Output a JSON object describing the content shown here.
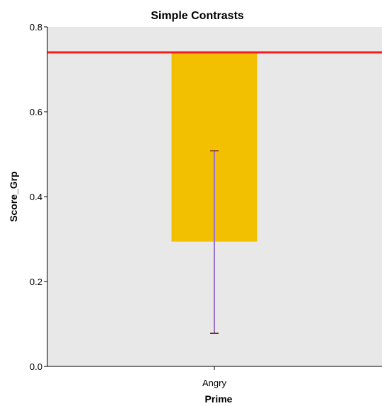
{
  "chart_data": {
    "type": "bar",
    "title": "Simple Contrasts",
    "xlabel": "Prime",
    "ylabel": "Score_Grp",
    "categories": [
      "Angry"
    ],
    "bar": {
      "category": "Angry",
      "bottom": 0.294,
      "top": 0.738
    },
    "error_bar": {
      "category": "Angry",
      "low": 0.078,
      "high": 0.508
    },
    "reference_line": {
      "y": 0.74
    },
    "ylim": [
      0.0,
      0.8
    ],
    "yticks": [
      "0.0",
      "0.2",
      "0.4",
      "0.6",
      "0.8"
    ],
    "yticks_values": [
      0.0,
      0.2,
      0.4,
      0.6,
      0.8
    ],
    "grid": false,
    "colors": {
      "plot_background": "#e8e8e8",
      "bar": "#f2c000",
      "reference_line": "#ff1a1a",
      "error_bar": "#9a72c8",
      "error_bar_cap": "#7a2020"
    }
  }
}
